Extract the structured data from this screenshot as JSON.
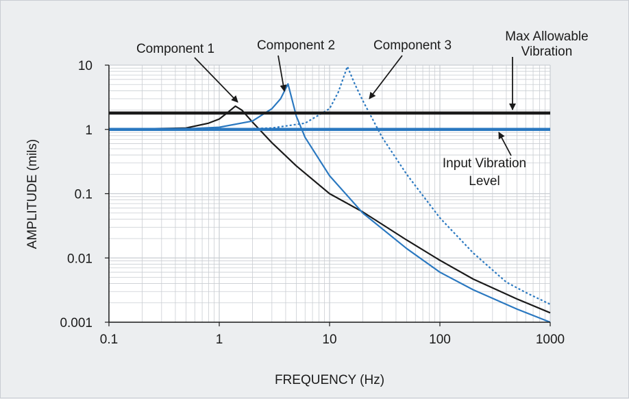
{
  "chart_data": {
    "type": "line",
    "xlabel": "FREQUENCY (Hz)",
    "ylabel": "AMPLITUDE (mils)",
    "x_scale": "log",
    "y_scale": "log",
    "xlim": [
      0.1,
      1000
    ],
    "ylim": [
      0.001,
      10
    ],
    "grid": true,
    "x_ticks": [
      {
        "value": 0.1,
        "label": "0.1"
      },
      {
        "value": 1,
        "label": "1"
      },
      {
        "value": 10,
        "label": "10"
      },
      {
        "value": 100,
        "label": "100"
      },
      {
        "value": 1000,
        "label": "1000"
      }
    ],
    "y_ticks": [
      {
        "value": 0.001,
        "label": "0.001"
      },
      {
        "value": 0.01,
        "label": "0.01"
      },
      {
        "value": 0.1,
        "label": "0.1"
      },
      {
        "value": 1,
        "label": "1"
      },
      {
        "value": 10,
        "label": "10"
      }
    ],
    "colors": {
      "black": "#1a1a1a",
      "blue": "#2a78c0",
      "dotted_blue": "#2a78c0",
      "grid": "#c9cdd2",
      "plot_bg": "#ffffff"
    },
    "series": [
      {
        "name": "Component 1",
        "color": "#1a1a1a",
        "style": "solid",
        "points": [
          [
            0.1,
            1.0
          ],
          [
            0.5,
            1.05
          ],
          [
            0.8,
            1.25
          ],
          [
            1.0,
            1.45
          ],
          [
            1.2,
            1.85
          ],
          [
            1.4,
            2.3
          ],
          [
            1.6,
            2.0
          ],
          [
            2.0,
            1.3
          ],
          [
            3.0,
            0.62
          ],
          [
            5.0,
            0.27
          ],
          [
            10.0,
            0.1
          ],
          [
            20.0,
            0.052
          ],
          [
            50.0,
            0.019
          ],
          [
            100.0,
            0.0092
          ],
          [
            200.0,
            0.0047
          ],
          [
            500.0,
            0.0023
          ],
          [
            1000.0,
            0.0014
          ]
        ]
      },
      {
        "name": "Component 2",
        "color": "#2a78c0",
        "style": "solid",
        "points": [
          [
            0.1,
            1.0
          ],
          [
            0.5,
            1.02
          ],
          [
            1.0,
            1.08
          ],
          [
            2.0,
            1.35
          ],
          [
            3.0,
            2.1
          ],
          [
            3.6,
            3.0
          ],
          [
            4.2,
            5.1
          ],
          [
            5.0,
            1.6
          ],
          [
            6.0,
            0.75
          ],
          [
            10.0,
            0.19
          ],
          [
            20.0,
            0.05
          ],
          [
            50.0,
            0.014
          ],
          [
            100.0,
            0.006
          ],
          [
            200.0,
            0.0032
          ],
          [
            500.0,
            0.0016
          ],
          [
            1000.0,
            0.001
          ]
        ]
      },
      {
        "name": "Component 3",
        "color": "#2a78c0",
        "style": "dotted",
        "points": [
          [
            0.1,
            1.0
          ],
          [
            1.0,
            1.0
          ],
          [
            3.0,
            1.05
          ],
          [
            6.0,
            1.25
          ],
          [
            10.0,
            2.1
          ],
          [
            12.0,
            3.8
          ],
          [
            14.5,
            9.5
          ],
          [
            17.0,
            5.0
          ],
          [
            20.0,
            2.8
          ],
          [
            30.0,
            0.75
          ],
          [
            50.0,
            0.2
          ],
          [
            100.0,
            0.042
          ],
          [
            200.0,
            0.012
          ],
          [
            400.0,
            0.0042
          ],
          [
            600.0,
            0.0029
          ],
          [
            1000.0,
            0.0019
          ]
        ]
      },
      {
        "name": "Max Allowable Vibration",
        "color": "#1a1a1a",
        "style": "thick",
        "points": [
          [
            0.1,
            1.8
          ],
          [
            1000.0,
            1.8
          ]
        ]
      },
      {
        "name": "Input Vibration Level",
        "color": "#2a78c0",
        "style": "thick",
        "points": [
          [
            0.1,
            1.0
          ],
          [
            1000.0,
            1.0
          ]
        ]
      }
    ],
    "annotations": [
      {
        "id": "comp1",
        "lines": [
          "Component 1"
        ],
        "points_to": [
          1.35,
          2.3
        ]
      },
      {
        "id": "comp2",
        "lines": [
          "Component 2"
        ],
        "points_to": [
          3.9,
          4.2
        ]
      },
      {
        "id": "comp3",
        "lines": [
          "Component 3"
        ],
        "points_to": [
          18.0,
          2.5
        ]
      },
      {
        "id": "maxvib",
        "lines": [
          "Max Allowable",
          "Vibration"
        ],
        "points_to": [
          450.0,
          1.8
        ]
      },
      {
        "id": "inputvib",
        "lines": [
          "Input Vibration",
          "Level"
        ],
        "points_to": [
          440.0,
          1.0
        ]
      }
    ]
  }
}
